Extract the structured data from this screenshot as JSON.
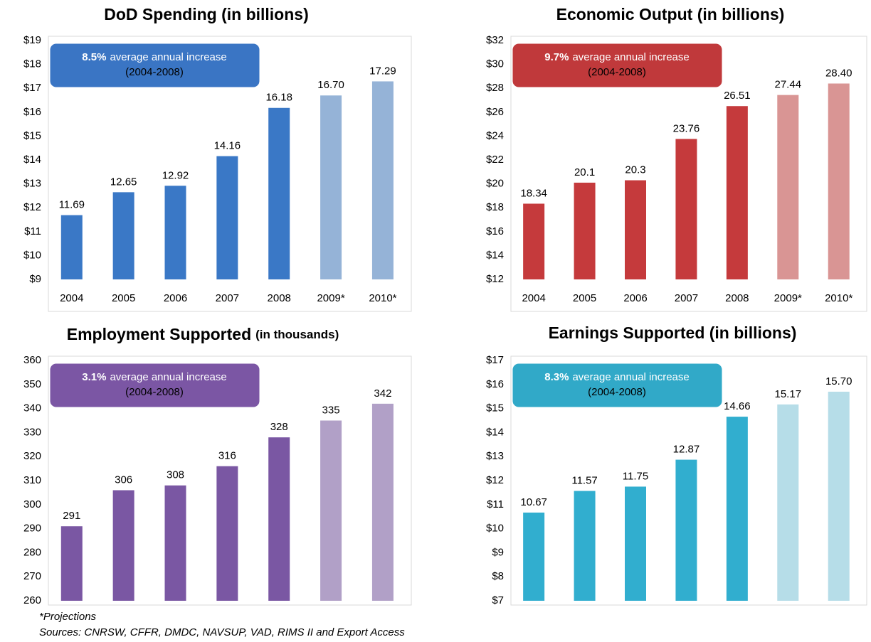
{
  "chart_data": [
    {
      "type": "bar",
      "title": "DoD Spending (in billions)",
      "categories": [
        "2004",
        "2005",
        "2006",
        "2007",
        "2008",
        "2009*",
        "2010*"
      ],
      "values": [
        11.69,
        12.65,
        12.92,
        14.16,
        16.18,
        16.7,
        17.29
      ],
      "value_labels": [
        "11.69",
        "12.65",
        "12.92",
        "14.16",
        "16.18",
        "16.70",
        "17.29"
      ],
      "colors": [
        "#3a78c6",
        "#3a78c6",
        "#3a78c6",
        "#3a78c6",
        "#3a78c6",
        "#95b3d7",
        "#95b3d7"
      ],
      "ylim": [
        9,
        19
      ],
      "yticks": [
        {
          "value": 9,
          "label": "$9"
        },
        {
          "value": 10,
          "label": "$10"
        },
        {
          "value": 11,
          "label": "$11"
        },
        {
          "value": 12,
          "label": "$12"
        },
        {
          "value": 13,
          "label": "$13"
        },
        {
          "value": 14,
          "label": "$14"
        },
        {
          "value": 15,
          "label": "$15"
        },
        {
          "value": 16,
          "label": "$16"
        },
        {
          "value": 17,
          "label": "$17"
        },
        {
          "value": 18,
          "label": "$18"
        },
        {
          "value": 19,
          "label": "$19"
        }
      ],
      "annotation": {
        "highlight": "8.5%",
        "text": "average annual increase",
        "period": "(2004-2008)",
        "color": "#3a75c4"
      }
    },
    {
      "type": "bar",
      "title": "Economic Output (in billions)",
      "categories": [
        "2004",
        "2005",
        "2006",
        "2007",
        "2008",
        "2009*",
        "2010*"
      ],
      "values": [
        18.34,
        20.1,
        20.3,
        23.76,
        26.51,
        27.44,
        28.4
      ],
      "value_labels": [
        "18.34",
        "20.1",
        "20.3",
        "23.76",
        "26.51",
        "27.44",
        "28.40"
      ],
      "colors": [
        "#c53a3c",
        "#c53a3c",
        "#c53a3c",
        "#c53a3c",
        "#c53a3c",
        "#d99594",
        "#d99594"
      ],
      "ylim": [
        12,
        32
      ],
      "yticks": [
        {
          "value": 12,
          "label": "$12"
        },
        {
          "value": 14,
          "label": "$14"
        },
        {
          "value": 16,
          "label": "$16"
        },
        {
          "value": 18,
          "label": "$18"
        },
        {
          "value": 20,
          "label": "$20"
        },
        {
          "value": 22,
          "label": "$22"
        },
        {
          "value": 24,
          "label": "$24"
        },
        {
          "value": 26,
          "label": "$26"
        },
        {
          "value": 28,
          "label": "$28"
        },
        {
          "value": 30,
          "label": "$30"
        },
        {
          "value": 32,
          "label": "$32"
        }
      ],
      "annotation": {
        "highlight": "9.7%",
        "text": "average annual increase",
        "period": "(2004-2008)",
        "color": "#c0393b"
      }
    },
    {
      "type": "bar",
      "title": "Employment Supported",
      "subtitle": "(in thousands)",
      "values": [
        291,
        306,
        308,
        316,
        328,
        335,
        342
      ],
      "colors": [
        "#7a57a3",
        "#7a57a3",
        "#7a57a3",
        "#7a57a3",
        "#7a57a3",
        "#b1a0c7",
        "#b1a0c7"
      ],
      "ylim": [
        260,
        360
      ],
      "yticks": [
        260,
        270,
        280,
        290,
        300,
        310,
        320,
        330,
        340,
        350,
        360
      ],
      "annotation": {
        "highlight": "3.1%",
        "text": "average annual increase",
        "period": "(2004-2008)",
        "color": "#7b56a4"
      }
    },
    {
      "type": "bar",
      "title": "Earnings Supported (in billions)",
      "values": [
        10.67,
        11.57,
        11.75,
        12.87,
        14.66,
        15.17,
        15.7
      ],
      "value_labels": [
        "10.67",
        "11.57",
        "11.75",
        "12.87",
        "14.66",
        "15.17",
        "15.70"
      ],
      "colors": [
        "#31aecf",
        "#31aecf",
        "#31aecf",
        "#31aecf",
        "#31aecf",
        "#b6dde8",
        "#b6dde8"
      ],
      "ylim": [
        7,
        17
      ],
      "yticks": [
        {
          "value": 7,
          "label": "$7"
        },
        {
          "value": 8,
          "label": "$8"
        },
        {
          "value": 9,
          "label": "$9"
        },
        {
          "value": 10,
          "label": "$10"
        },
        {
          "value": 11,
          "label": "$11"
        },
        {
          "value": 12,
          "label": "$12"
        },
        {
          "value": 13,
          "label": "$13"
        },
        {
          "value": 14,
          "label": "$14"
        },
        {
          "value": 15,
          "label": "$15"
        },
        {
          "value": 16,
          "label": "$16"
        },
        {
          "value": 17,
          "label": "$17"
        }
      ],
      "annotation": {
        "highlight": "8.3%",
        "text": "average annual increase",
        "period": "(2004-2008)",
        "color": "#31a9c8"
      }
    }
  ],
  "footnotes": [
    "*Projections",
    "Sources: CNRSW, CFFR, DMDC, NAVSUP, VAD, RIMS II and Export Access"
  ]
}
